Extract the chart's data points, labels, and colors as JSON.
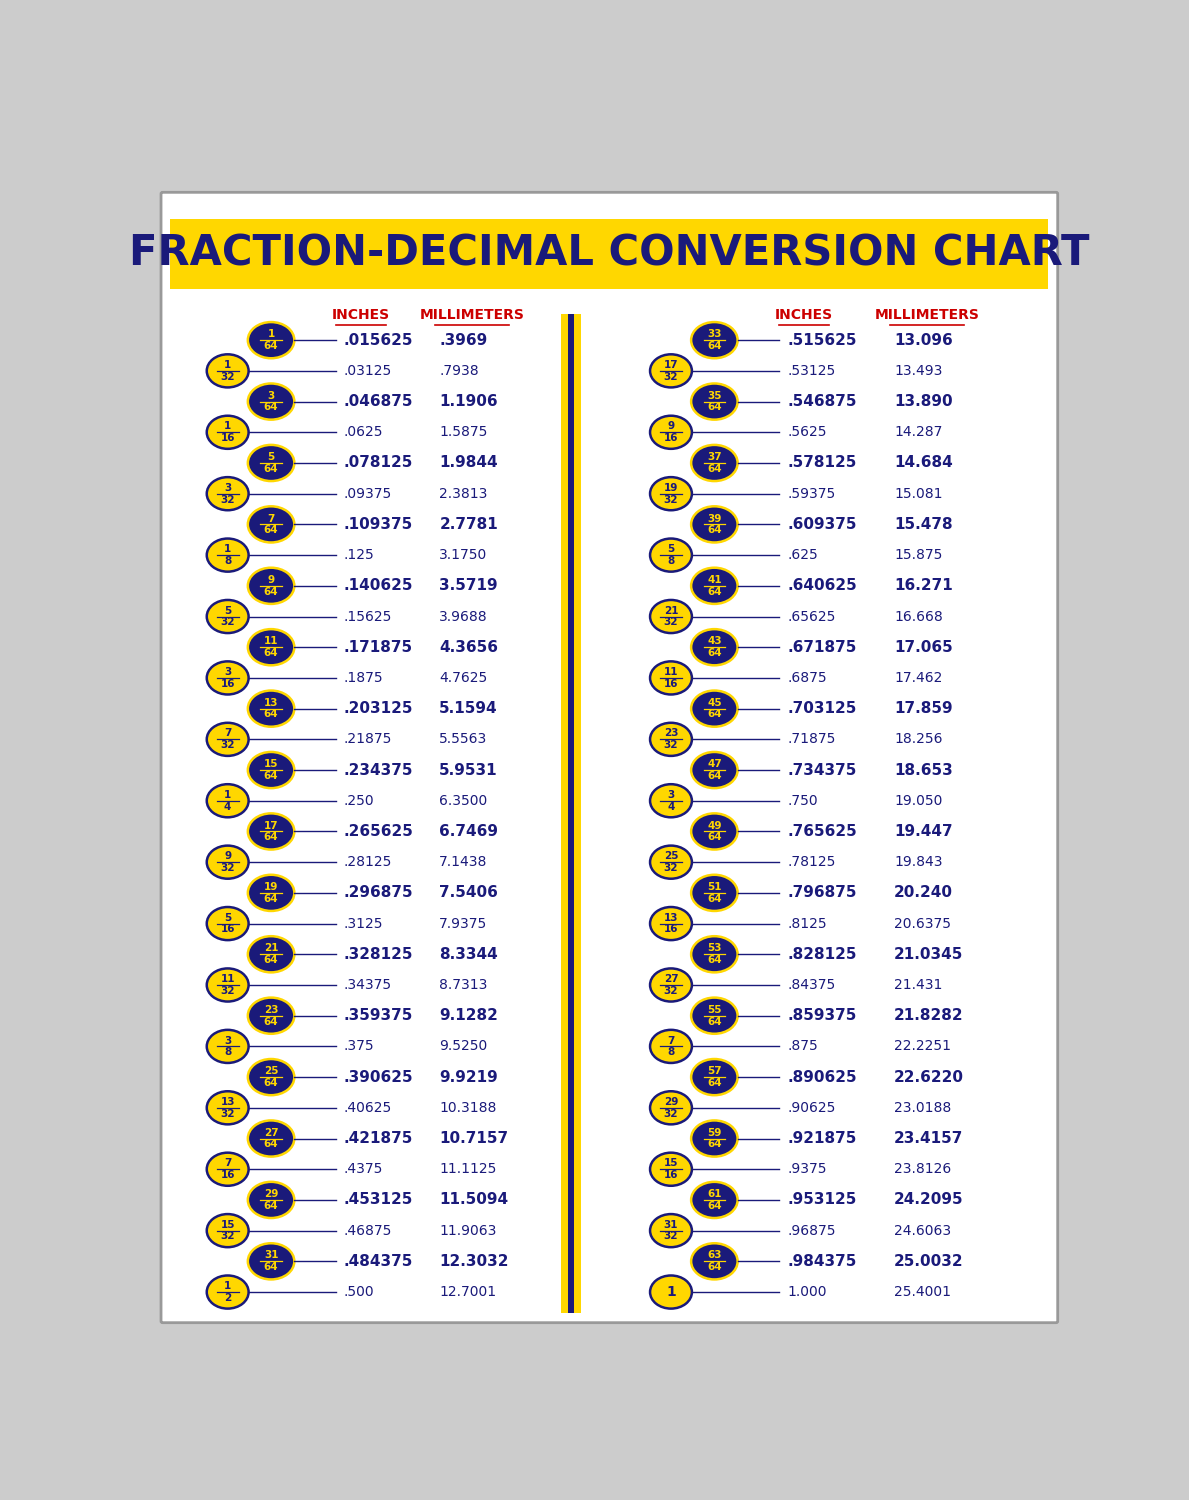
{
  "title": "FRACTION-DECIMAL CONVERSION CHART",
  "title_bg": "#FFD700",
  "title_color": "#1a1a7a",
  "header_color": "#cc0000",
  "bg_color": "#ffffff",
  "yellow_circle_color": "#FFD700",
  "blue_circle_color": "#1a1a7a",
  "blue_circle_text": "#FFD700",
  "text_color": "#1a1a7a",
  "left_rows": [
    {
      "frac": "1/64",
      "blue": true,
      "inch": ".015625",
      "mm": ".3969",
      "bold": true
    },
    {
      "frac": "1/32",
      "blue": false,
      "inch": ".03125",
      "mm": ".7938",
      "bold": false
    },
    {
      "frac": "3/64",
      "blue": true,
      "inch": ".046875",
      "mm": "1.1906",
      "bold": true
    },
    {
      "frac": "1/16",
      "blue": false,
      "inch": ".0625",
      "mm": "1.5875",
      "bold": false
    },
    {
      "frac": "5/64",
      "blue": true,
      "inch": ".078125",
      "mm": "1.9844",
      "bold": true
    },
    {
      "frac": "3/32",
      "blue": false,
      "inch": ".09375",
      "mm": "2.3813",
      "bold": false
    },
    {
      "frac": "7/64",
      "blue": true,
      "inch": ".109375",
      "mm": "2.7781",
      "bold": true
    },
    {
      "frac": "1/8",
      "blue": false,
      "inch": ".125",
      "mm": "3.1750",
      "bold": false
    },
    {
      "frac": "9/64",
      "blue": true,
      "inch": ".140625",
      "mm": "3.5719",
      "bold": true
    },
    {
      "frac": "5/32",
      "blue": false,
      "inch": ".15625",
      "mm": "3.9688",
      "bold": false
    },
    {
      "frac": "11/64",
      "blue": true,
      "inch": ".171875",
      "mm": "4.3656",
      "bold": true
    },
    {
      "frac": "3/16",
      "blue": false,
      "inch": ".1875",
      "mm": "4.7625",
      "bold": false
    },
    {
      "frac": "13/64",
      "blue": true,
      "inch": ".203125",
      "mm": "5.1594",
      "bold": true
    },
    {
      "frac": "7/32",
      "blue": false,
      "inch": ".21875",
      "mm": "5.5563",
      "bold": false
    },
    {
      "frac": "15/64",
      "blue": true,
      "inch": ".234375",
      "mm": "5.9531",
      "bold": true
    },
    {
      "frac": "1/4",
      "blue": false,
      "inch": ".250",
      "mm": "6.3500",
      "bold": false
    },
    {
      "frac": "17/64",
      "blue": true,
      "inch": ".265625",
      "mm": "6.7469",
      "bold": true
    },
    {
      "frac": "9/32",
      "blue": false,
      "inch": ".28125",
      "mm": "7.1438",
      "bold": false
    },
    {
      "frac": "19/64",
      "blue": true,
      "inch": ".296875",
      "mm": "7.5406",
      "bold": true
    },
    {
      "frac": "5/16",
      "blue": false,
      "inch": ".3125",
      "mm": "7.9375",
      "bold": false
    },
    {
      "frac": "21/64",
      "blue": true,
      "inch": ".328125",
      "mm": "8.3344",
      "bold": true
    },
    {
      "frac": "11/32",
      "blue": false,
      "inch": ".34375",
      "mm": "8.7313",
      "bold": false
    },
    {
      "frac": "23/64",
      "blue": true,
      "inch": ".359375",
      "mm": "9.1282",
      "bold": true
    },
    {
      "frac": "3/8",
      "blue": false,
      "inch": ".375",
      "mm": "9.5250",
      "bold": false
    },
    {
      "frac": "25/64",
      "blue": true,
      "inch": ".390625",
      "mm": "9.9219",
      "bold": true
    },
    {
      "frac": "13/32",
      "blue": false,
      "inch": ".40625",
      "mm": "10.3188",
      "bold": false
    },
    {
      "frac": "27/64",
      "blue": true,
      "inch": ".421875",
      "mm": "10.7157",
      "bold": true
    },
    {
      "frac": "7/16",
      "blue": false,
      "inch": ".4375",
      "mm": "11.1125",
      "bold": false
    },
    {
      "frac": "29/64",
      "blue": true,
      "inch": ".453125",
      "mm": "11.5094",
      "bold": true
    },
    {
      "frac": "15/32",
      "blue": false,
      "inch": ".46875",
      "mm": "11.9063",
      "bold": false
    },
    {
      "frac": "31/64",
      "blue": true,
      "inch": ".484375",
      "mm": "12.3032",
      "bold": true
    },
    {
      "frac": "1/2",
      "blue": false,
      "inch": ".500",
      "mm": "12.7001",
      "bold": false
    }
  ],
  "right_rows": [
    {
      "frac": "33/64",
      "blue": true,
      "inch": ".515625",
      "mm": "13.096",
      "bold": true
    },
    {
      "frac": "17/32",
      "blue": false,
      "inch": ".53125",
      "mm": "13.493",
      "bold": false
    },
    {
      "frac": "35/64",
      "blue": true,
      "inch": ".546875",
      "mm": "13.890",
      "bold": true
    },
    {
      "frac": "9/16",
      "blue": false,
      "inch": ".5625",
      "mm": "14.287",
      "bold": false
    },
    {
      "frac": "37/64",
      "blue": true,
      "inch": ".578125",
      "mm": "14.684",
      "bold": true
    },
    {
      "frac": "19/32",
      "blue": false,
      "inch": ".59375",
      "mm": "15.081",
      "bold": false
    },
    {
      "frac": "39/64",
      "blue": true,
      "inch": ".609375",
      "mm": "15.478",
      "bold": true
    },
    {
      "frac": "5/8",
      "blue": false,
      "inch": ".625",
      "mm": "15.875",
      "bold": false
    },
    {
      "frac": "41/64",
      "blue": true,
      "inch": ".640625",
      "mm": "16.271",
      "bold": true
    },
    {
      "frac": "21/32",
      "blue": false,
      "inch": ".65625",
      "mm": "16.668",
      "bold": false
    },
    {
      "frac": "43/64",
      "blue": true,
      "inch": ".671875",
      "mm": "17.065",
      "bold": true
    },
    {
      "frac": "11/16",
      "blue": false,
      "inch": ".6875",
      "mm": "17.462",
      "bold": false
    },
    {
      "frac": "45/64",
      "blue": true,
      "inch": ".703125",
      "mm": "17.859",
      "bold": true
    },
    {
      "frac": "23/32",
      "blue": false,
      "inch": ".71875",
      "mm": "18.256",
      "bold": false
    },
    {
      "frac": "47/64",
      "blue": true,
      "inch": ".734375",
      "mm": "18.653",
      "bold": true
    },
    {
      "frac": "3/4",
      "blue": false,
      "inch": ".750",
      "mm": "19.050",
      "bold": false
    },
    {
      "frac": "49/64",
      "blue": true,
      "inch": ".765625",
      "mm": "19.447",
      "bold": true
    },
    {
      "frac": "25/32",
      "blue": false,
      "inch": ".78125",
      "mm": "19.843",
      "bold": false
    },
    {
      "frac": "51/64",
      "blue": true,
      "inch": ".796875",
      "mm": "20.240",
      "bold": true
    },
    {
      "frac": "13/16",
      "blue": false,
      "inch": ".8125",
      "mm": "20.6375",
      "bold": false
    },
    {
      "frac": "53/64",
      "blue": true,
      "inch": ".828125",
      "mm": "21.0345",
      "bold": true
    },
    {
      "frac": "27/32",
      "blue": false,
      "inch": ".84375",
      "mm": "21.431",
      "bold": false
    },
    {
      "frac": "55/64",
      "blue": true,
      "inch": ".859375",
      "mm": "21.8282",
      "bold": true
    },
    {
      "frac": "7/8",
      "blue": false,
      "inch": ".875",
      "mm": "22.2251",
      "bold": false
    },
    {
      "frac": "57/64",
      "blue": true,
      "inch": ".890625",
      "mm": "22.6220",
      "bold": true
    },
    {
      "frac": "29/32",
      "blue": false,
      "inch": ".90625",
      "mm": "23.0188",
      "bold": false
    },
    {
      "frac": "59/64",
      "blue": true,
      "inch": ".921875",
      "mm": "23.4157",
      "bold": true
    },
    {
      "frac": "15/16",
      "blue": false,
      "inch": ".9375",
      "mm": "23.8126",
      "bold": false
    },
    {
      "frac": "61/64",
      "blue": true,
      "inch": ".953125",
      "mm": "24.2095",
      "bold": true
    },
    {
      "frac": "31/32",
      "blue": false,
      "inch": ".96875",
      "mm": "24.6063",
      "bold": false
    },
    {
      "frac": "63/64",
      "blue": true,
      "inch": ".984375",
      "mm": "25.0032",
      "bold": true
    },
    {
      "frac": "1",
      "blue": false,
      "inch": "1.000",
      "mm": "25.4001",
      "bold": false
    }
  ]
}
